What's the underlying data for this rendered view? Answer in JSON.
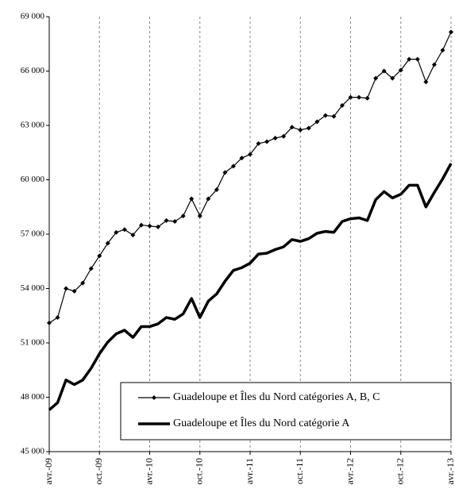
{
  "chart_data": {
    "type": "line",
    "categories": [
      "avr.-09",
      null,
      null,
      null,
      null,
      null,
      "oct.-09",
      null,
      null,
      null,
      null,
      null,
      "avr.-10",
      null,
      null,
      null,
      null,
      null,
      "oct.-10",
      null,
      null,
      null,
      null,
      null,
      "avr.-11",
      null,
      null,
      null,
      null,
      null,
      "oct.-11",
      null,
      null,
      null,
      null,
      null,
      "avr.-12",
      null,
      null,
      null,
      null,
      null,
      "oct.-12",
      null,
      null,
      null,
      null,
      null,
      "avr.-13"
    ],
    "series": [
      {
        "name": "Guadeloupe et Îles du Nord catégories A, B, C",
        "color": "#000000",
        "width": 1.2,
        "marker": "diamond",
        "values": [
          52100,
          52400,
          54000,
          53850,
          54300,
          55100,
          55800,
          56500,
          57100,
          57250,
          56950,
          57500,
          57450,
          57400,
          57750,
          57700,
          58000,
          58950,
          58000,
          58950,
          59450,
          60400,
          60750,
          61200,
          61400,
          62000,
          62100,
          62300,
          62400,
          62900,
          62750,
          62850,
          63200,
          63550,
          63500,
          64100,
          64550,
          64550,
          64500,
          65600,
          66000,
          65600,
          66050,
          66650,
          66650,
          65400,
          66350,
          67150,
          68150
        ]
      },
      {
        "name": "Guadeloupe et Îles du Nord catégorie A",
        "color": "#000000",
        "width": 3.5,
        "marker": "none",
        "values": [
          47300,
          47700,
          48950,
          48700,
          48950,
          49600,
          50400,
          51050,
          51500,
          51700,
          51300,
          51900,
          51900,
          52050,
          52400,
          52300,
          52600,
          53450,
          52400,
          53300,
          53700,
          54400,
          55000,
          55150,
          55400,
          55900,
          55950,
          56150,
          56300,
          56700,
          56600,
          56750,
          57050,
          57150,
          57100,
          57700,
          57850,
          57900,
          57750,
          58900,
          59350,
          59000,
          59200,
          59700,
          59700,
          58500,
          59300,
          60050,
          60900
        ]
      }
    ],
    "ylim": [
      45000,
      69000
    ],
    "yticks": [
      {
        "value": 45000,
        "label": "45 000"
      },
      {
        "value": 48000,
        "label": "48 000"
      },
      {
        "value": 51000,
        "label": "51 000"
      },
      {
        "value": 54000,
        "label": "54 000"
      },
      {
        "value": 57000,
        "label": "57 000"
      },
      {
        "value": 60000,
        "label": "60 000"
      },
      {
        "value": 63000,
        "label": "63 000"
      },
      {
        "value": 66000,
        "label": "66 000"
      },
      {
        "value": 69000,
        "label": "69 000"
      }
    ],
    "xgrid": true,
    "legend": "lower right"
  }
}
